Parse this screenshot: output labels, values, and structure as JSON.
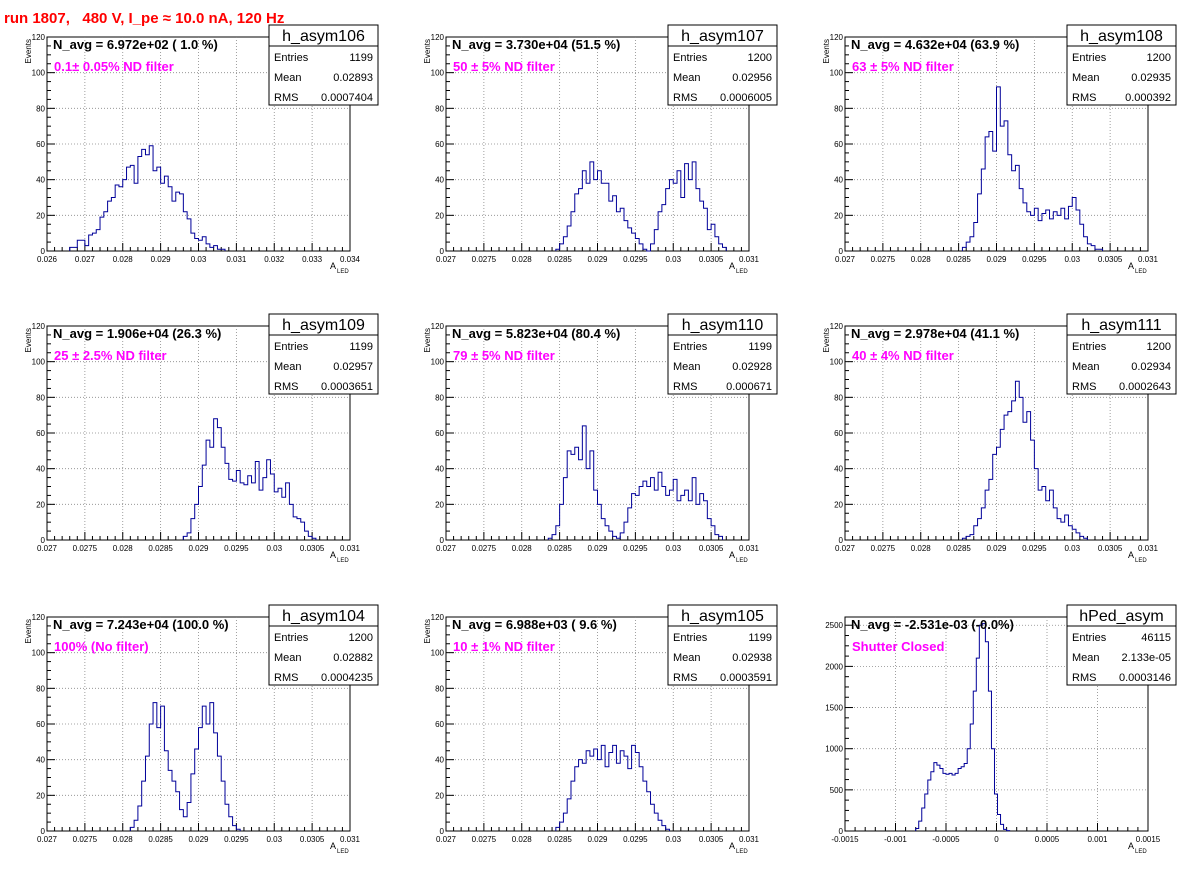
{
  "title": "run 1807,   480 V, I_pe ≈ 10.0 nA, 120 Hz",
  "chart_data": [
    {
      "type": "histogram",
      "name": "h_asym106",
      "stats": {
        "Entries": "1199",
        "Mean": "0.02893",
        "RMS": "0.0007404"
      },
      "navg": "N_avg = 6.972e+02 ( 1.0 %)",
      "filter": "0.1± 0.05% ND filter",
      "xlabel": "A",
      "xlabel_sub": "LED",
      "ylabel": "Events",
      "xlim": [
        0.026,
        0.034
      ],
      "ylim": [
        0,
        120
      ],
      "xticks": [
        "0.026",
        "0.027",
        "0.028",
        "0.029",
        "0.03",
        "0.031",
        "0.032",
        "0.033",
        "0.034"
      ],
      "yticks": [
        "0",
        "20",
        "40",
        "60",
        "80",
        "100",
        "120"
      ],
      "bins": {
        "start": 0.0266,
        "width": 0.0001,
        "counts": [
          2,
          2,
          6,
          6,
          3,
          9,
          10,
          12,
          19,
          22,
          28,
          30,
          37,
          36,
          40,
          47,
          48,
          38,
          53,
          57,
          54,
          59,
          45,
          47,
          38,
          42,
          36,
          28,
          33,
          32,
          22,
          18,
          10,
          7,
          6,
          8,
          4,
          2,
          3,
          1,
          1
        ]
      }
    },
    {
      "type": "histogram",
      "name": "h_asym107",
      "stats": {
        "Entries": "1200",
        "Mean": "0.02956",
        "RMS": "0.0006005"
      },
      "navg": "N_avg = 3.730e+04 (51.5 %)",
      "filter": "50 ± 5% ND filter",
      "xlabel": "A",
      "xlabel_sub": "LED",
      "ylabel": "Events",
      "xlim": [
        0.027,
        0.031
      ],
      "ylim": [
        0,
        120
      ],
      "xticks": [
        "0.027",
        "0.0275",
        "0.028",
        "0.0285",
        "0.029",
        "0.0295",
        "0.03",
        "0.0305",
        "0.031"
      ],
      "yticks": [
        "0",
        "20",
        "40",
        "60",
        "80",
        "100",
        "120"
      ],
      "bins": {
        "start": 0.02845,
        "width": 5e-05,
        "counts": [
          1,
          4,
          8,
          14,
          22,
          32,
          35,
          45,
          38,
          50,
          40,
          45,
          38,
          38,
          28,
          31,
          22,
          24,
          17,
          13,
          10,
          7,
          4,
          1,
          0,
          4,
          12,
          22,
          26,
          35,
          40,
          38,
          45,
          30,
          49,
          40,
          50,
          35,
          28,
          24,
          12,
          15,
          8,
          4,
          2
        ]
      }
    },
    {
      "type": "histogram",
      "name": "h_asym108",
      "stats": {
        "Entries": "1200",
        "Mean": "0.02935",
        "RMS": "0.000392"
      },
      "navg": "N_avg = 4.632e+04 (63.9 %)",
      "filter": "63 ± 5% ND filter",
      "xlabel": "A",
      "xlabel_sub": "LED",
      "ylabel": "Events",
      "xlim": [
        0.027,
        0.031
      ],
      "ylim": [
        0,
        120
      ],
      "xticks": [
        "0.027",
        "0.0275",
        "0.028",
        "0.0285",
        "0.029",
        "0.0295",
        "0.03",
        "0.0305",
        "0.031"
      ],
      "yticks": [
        "0",
        "20",
        "40",
        "60",
        "80",
        "100",
        "120"
      ],
      "bins": {
        "start": 0.02855,
        "width": 5e-05,
        "counts": [
          2,
          5,
          8,
          16,
          32,
          46,
          64,
          67,
          56,
          92,
          70,
          73,
          54,
          45,
          48,
          35,
          27,
          22,
          20,
          24,
          17,
          21,
          23,
          18,
          22,
          20,
          24,
          18,
          25,
          30,
          23,
          15,
          8,
          4,
          3,
          1,
          1
        ]
      }
    },
    {
      "type": "histogram",
      "name": "h_asym109",
      "stats": {
        "Entries": "1199",
        "Mean": "0.02957",
        "RMS": "0.0003651"
      },
      "navg": "N_avg = 1.906e+04 (26.3 %)",
      "filter": "25 ± 2.5% ND filter",
      "xlabel": "A",
      "xlabel_sub": "LED",
      "ylabel": "Events",
      "xlim": [
        0.027,
        0.031
      ],
      "ylim": [
        0,
        120
      ],
      "xticks": [
        "0.027",
        "0.0275",
        "0.028",
        "0.0285",
        "0.029",
        "0.0295",
        "0.03",
        "0.0305",
        "0.031"
      ],
      "yticks": [
        "0",
        "20",
        "40",
        "60",
        "80",
        "100",
        "120"
      ],
      "bins": {
        "start": 0.0288,
        "width": 5e-05,
        "counts": [
          2,
          4,
          12,
          20,
          30,
          42,
          56,
          52,
          68,
          63,
          52,
          43,
          34,
          33,
          39,
          32,
          31,
          36,
          32,
          44,
          28,
          35,
          45,
          37,
          27,
          29,
          24,
          32,
          20,
          13,
          12,
          10,
          5,
          2,
          1
        ]
      }
    },
    {
      "type": "histogram",
      "name": "h_asym110",
      "stats": {
        "Entries": "1199",
        "Mean": "0.02928",
        "RMS": "0.000671"
      },
      "navg": "N_avg = 5.823e+04 (80.4 %)",
      "filter": "79 ± 5% ND filter",
      "xlabel": "A",
      "xlabel_sub": "LED",
      "ylabel": "Events",
      "xlim": [
        0.027,
        0.031
      ],
      "ylim": [
        0,
        120
      ],
      "xticks": [
        "0.027",
        "0.0275",
        "0.028",
        "0.0285",
        "0.029",
        "0.0295",
        "0.03",
        "0.0305",
        "0.031"
      ],
      "yticks": [
        "0",
        "20",
        "40",
        "60",
        "80",
        "100",
        "120"
      ],
      "bins": {
        "start": 0.02835,
        "width": 5e-05,
        "counts": [
          1,
          3,
          8,
          20,
          35,
          50,
          48,
          52,
          45,
          64,
          40,
          50,
          28,
          20,
          12,
          8,
          5,
          2,
          1,
          4,
          10,
          18,
          26,
          25,
          30,
          33,
          30,
          35,
          28,
          38,
          30,
          25,
          28,
          34,
          22,
          25,
          28,
          22,
          35,
          20,
          26,
          22,
          12,
          8,
          3,
          2
        ]
      }
    },
    {
      "type": "histogram",
      "name": "h_asym111",
      "stats": {
        "Entries": "1200",
        "Mean": "0.02934",
        "RMS": "0.0002643"
      },
      "navg": "N_avg = 2.978e+04 (41.1 %)",
      "filter": "40 ± 4% ND filter",
      "xlabel": "A",
      "xlabel_sub": "LED",
      "ylabel": "Events",
      "xlim": [
        0.027,
        0.031
      ],
      "ylim": [
        0,
        120
      ],
      "xticks": [
        "0.027",
        "0.0275",
        "0.028",
        "0.0285",
        "0.029",
        "0.0295",
        "0.03",
        "0.0305",
        "0.031"
      ],
      "yticks": [
        "0",
        "20",
        "40",
        "60",
        "80",
        "100",
        "120"
      ],
      "bins": {
        "start": 0.02855,
        "width": 5e-05,
        "counts": [
          1,
          2,
          3,
          8,
          12,
          18,
          28,
          34,
          48,
          52,
          62,
          70,
          72,
          78,
          89,
          80,
          66,
          72,
          56,
          40,
          28,
          30,
          22,
          28,
          18,
          12,
          10,
          14,
          8,
          6,
          4,
          2,
          1
        ]
      }
    },
    {
      "type": "histogram",
      "name": "h_asym104",
      "stats": {
        "Entries": "1200",
        "Mean": "0.02882",
        "RMS": "0.0004235"
      },
      "navg": "N_avg = 7.243e+04 (100.0 %)",
      "filter": "100% (No filter)",
      "xlabel": "A",
      "xlabel_sub": "LED",
      "ylabel": "Events",
      "xlim": [
        0.027,
        0.031
      ],
      "ylim": [
        0,
        120
      ],
      "xticks": [
        "0.027",
        "0.0275",
        "0.028",
        "0.0285",
        "0.029",
        "0.0295",
        "0.03",
        "0.0305",
        "0.031"
      ],
      "yticks": [
        "0",
        "20",
        "40",
        "60",
        "80",
        "100",
        "120"
      ],
      "bins": {
        "start": 0.0281,
        "width": 5e-05,
        "counts": [
          2,
          6,
          14,
          28,
          42,
          60,
          72,
          58,
          70,
          45,
          34,
          28,
          22,
          12,
          8,
          16,
          32,
          46,
          58,
          70,
          60,
          72,
          55,
          42,
          28,
          15,
          8,
          3,
          1
        ]
      }
    },
    {
      "type": "histogram",
      "name": "h_asym105",
      "stats": {
        "Entries": "1199",
        "Mean": "0.02938",
        "RMS": "0.0003591"
      },
      "navg": "N_avg = 6.988e+03 ( 9.6 %)",
      "filter": "10 ± 1% ND filter",
      "xlabel": "A",
      "xlabel_sub": "LED",
      "ylabel": "Events",
      "xlim": [
        0.027,
        0.031
      ],
      "ylim": [
        0,
        120
      ],
      "xticks": [
        "0.027",
        "0.0275",
        "0.028",
        "0.0285",
        "0.029",
        "0.0295",
        "0.03",
        "0.0305",
        "0.031"
      ],
      "yticks": [
        "0",
        "20",
        "40",
        "60",
        "80",
        "100",
        "120"
      ],
      "bins": {
        "start": 0.02845,
        "width": 5e-05,
        "counts": [
          2,
          5,
          10,
          18,
          28,
          36,
          40,
          38,
          45,
          42,
          46,
          40,
          48,
          36,
          44,
          48,
          38,
          45,
          42,
          35,
          48,
          44,
          36,
          28,
          22,
          15,
          10,
          6,
          3,
          1
        ]
      }
    },
    {
      "type": "histogram",
      "name": "hPed_asym",
      "stats": {
        "Entries": "46115",
        "Mean": "2.133e-05",
        "RMS": "0.0003146"
      },
      "navg": "N_avg = -2.531e-03 (-0.0%)",
      "filter": "Shutter Closed",
      "xlabel": "A",
      "xlabel_sub": "LED",
      "ylabel": "",
      "xlim": [
        -0.0015,
        0.0015
      ],
      "ylim": [
        0,
        2600
      ],
      "xticks": [
        "-0.0015",
        "-0.001",
        "-0.0005",
        "0",
        "0.0005",
        "0.001",
        "0.0015"
      ],
      "yticks": [
        "0",
        "500",
        "1000",
        "1500",
        "2000",
        "2500"
      ],
      "bins": {
        "start": -0.0008,
        "width": 3e-05,
        "counts": [
          30,
          120,
          280,
          450,
          620,
          720,
          830,
          800,
          760,
          700,
          690,
          700,
          680,
          700,
          760,
          780,
          820,
          1000,
          1300,
          1700,
          2100,
          2500,
          2520,
          2300,
          1700,
          1000,
          450,
          200,
          80,
          20,
          5
        ]
      }
    }
  ]
}
